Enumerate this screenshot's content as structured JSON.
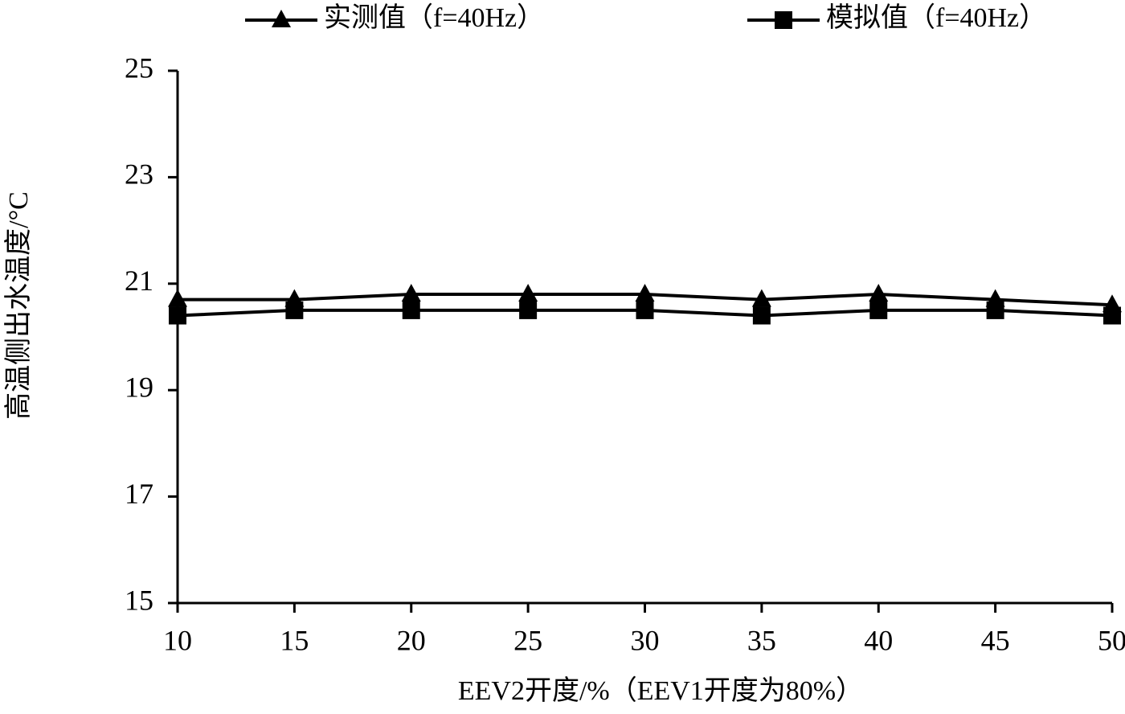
{
  "chart_data": {
    "type": "line",
    "x_label": "EEV2开度/%（EEV1开度为80%）",
    "y_label": "高温侧出水温度/°C",
    "x": [
      10,
      15,
      20,
      25,
      30,
      35,
      40,
      45,
      50
    ],
    "series": [
      {
        "name": "实测值（f=40Hz）",
        "color": "#000000",
        "marker": "triangle",
        "values": [
          20.7,
          20.7,
          20.8,
          20.8,
          20.8,
          20.7,
          20.8,
          20.7,
          20.6
        ]
      },
      {
        "name": "模拟值（f=40Hz）",
        "color": "#000000",
        "marker": "square",
        "values": [
          20.4,
          20.5,
          20.5,
          20.5,
          20.5,
          20.4,
          20.5,
          20.5,
          20.4
        ]
      }
    ],
    "xlim": [
      10,
      50
    ],
    "xticks": [
      10,
      15,
      20,
      25,
      30,
      35,
      40,
      45,
      50
    ],
    "ylim": [
      15,
      25
    ],
    "yticks": [
      15,
      17,
      19,
      21,
      23,
      25
    ],
    "grid": false,
    "legend": "top"
  }
}
